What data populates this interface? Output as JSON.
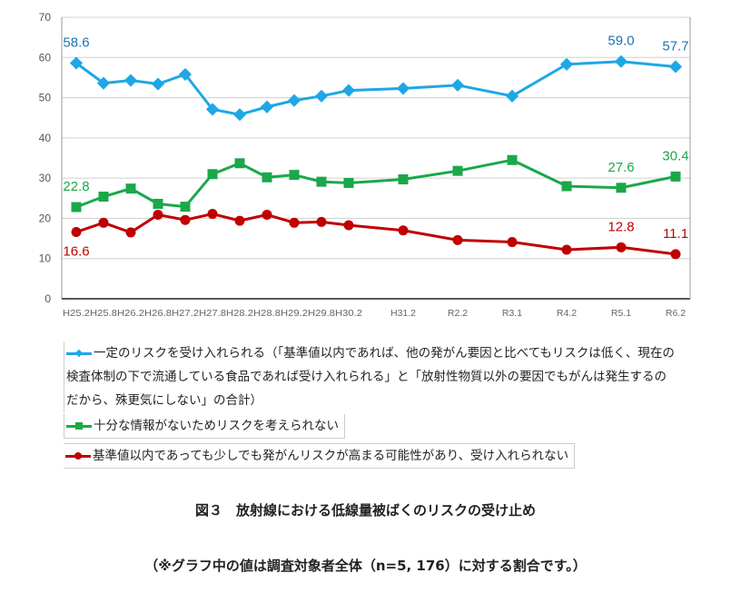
{
  "chart_data": {
    "type": "line",
    "categories": [
      "H25.2",
      "H25.8",
      "H26.2",
      "H26.8",
      "H27.2",
      "H27.8",
      "H28.2",
      "H28.8",
      "H29.2",
      "H29.8",
      "H30.2",
      "",
      "H31.2",
      "",
      "R2.2",
      "",
      "R3.1",
      "",
      "R4.2",
      "",
      "R5.1",
      "",
      "R6.2"
    ],
    "ylim": [
      0,
      70
    ],
    "yticks": [
      0,
      10,
      20,
      30,
      40,
      50,
      60,
      70
    ],
    "grid": true,
    "legend_position": "bottom",
    "series": [
      {
        "name": "一定のリスクを受け入れられる（「基準値以内であれば、他の発がん要因と比べてもリスクは低く、現在の検査体制の下で流通している食品であれば受け入れられる」と「放射性物質以外の要因でもがんは発生するのだから、殊更気にしない」の合計）",
        "color": "#1ea7e6",
        "marker": "diamond",
        "label_color": "#1f73b0",
        "values": [
          58.6,
          53.6,
          54.3,
          53.4,
          55.8,
          47.1,
          45.8,
          47.7,
          49.3,
          50.4,
          51.8,
          null,
          52.3,
          null,
          53.1,
          null,
          50.4,
          null,
          58.3,
          null,
          59.0,
          null,
          57.7
        ],
        "labels": {
          "0": "58.6",
          "20": "59.0",
          "22": "57.7"
        }
      },
      {
        "name": "十分な情報がないためリスクを考えられない",
        "color": "#1aa84a",
        "marker": "square",
        "label_color": "#1aa84a",
        "values": [
          22.8,
          25.4,
          27.4,
          23.6,
          22.9,
          31.0,
          33.7,
          30.2,
          30.8,
          29.1,
          28.8,
          null,
          29.7,
          null,
          31.8,
          null,
          34.5,
          null,
          28.0,
          null,
          27.6,
          null,
          30.4
        ],
        "labels": {
          "0": "22.8",
          "20": "27.6",
          "22": "30.4"
        }
      },
      {
        "name": "基準値以内であっても少しでも発がんリスクが高まる可能性があり、受け入れられない",
        "color": "#c00000",
        "marker": "circle",
        "label_color": "#c00000",
        "values": [
          16.6,
          18.9,
          16.5,
          20.9,
          19.6,
          21.1,
          19.4,
          20.9,
          18.9,
          19.1,
          18.3,
          null,
          17.0,
          null,
          14.6,
          null,
          14.1,
          null,
          12.2,
          null,
          12.8,
          null,
          11.1
        ],
        "labels": {
          "0": "16.6",
          "20": "12.8",
          "22": "11.1"
        }
      }
    ]
  },
  "legend": {
    "blue": "一定のリスクを受け入れられる（「基準値以内であれば、他の発がん要因と比べてもリスクは低く、現在の検査体制の下で流通している食品であれば受け入れられる」と「放射性物質以外の要因でもがんは発生するのだから、殊更気にしない」の合計）",
    "green": "十分な情報がないためリスクを考えられない",
    "red": "基準値以内であっても少しでも発がんリスクが高まる可能性があり、受け入れられない"
  },
  "caption": {
    "title": "図３　放射線における低線量被ばくのリスクの受け止め",
    "note": "（※グラフ中の値は調査対象者全体（n=5, 176）に対する割合です。）"
  }
}
